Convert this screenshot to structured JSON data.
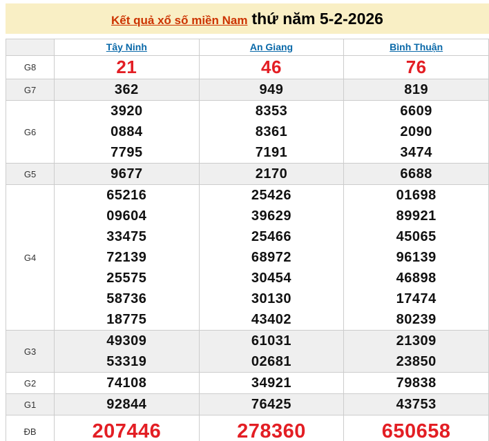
{
  "title": {
    "link_text": "Kết quả xổ số miền Nam",
    "date_text": "thứ năm 5-2-2026"
  },
  "columns": [
    "Tây Ninh",
    "An Giang",
    "Bình Thuận"
  ],
  "colors": {
    "banner_background": "#f9efc5",
    "title_link": "#cc3300",
    "province_link": "#0a69a9",
    "highlight_number": "#e31e24",
    "regular_number": "#111111",
    "shaded_row": "#efefef",
    "border": "#cccccc"
  },
  "rows": [
    {
      "label": "G8",
      "emphasis": "large-red",
      "values": [
        [
          "21"
        ],
        [
          "46"
        ],
        [
          "76"
        ]
      ]
    },
    {
      "label": "G7",
      "emphasis": "",
      "values": [
        [
          "362"
        ],
        [
          "949"
        ],
        [
          "819"
        ]
      ]
    },
    {
      "label": "G6",
      "emphasis": "",
      "values": [
        [
          "3920",
          "0884",
          "7795"
        ],
        [
          "8353",
          "8361",
          "7191"
        ],
        [
          "6609",
          "2090",
          "3474"
        ]
      ]
    },
    {
      "label": "G5",
      "emphasis": "",
      "values": [
        [
          "9677"
        ],
        [
          "2170"
        ],
        [
          "6688"
        ]
      ]
    },
    {
      "label": "G4",
      "emphasis": "",
      "values": [
        [
          "65216",
          "09604",
          "33475",
          "72139",
          "25575",
          "58736",
          "18775"
        ],
        [
          "25426",
          "39629",
          "25466",
          "68972",
          "30454",
          "30130",
          "43402"
        ],
        [
          "01698",
          "89921",
          "45065",
          "96139",
          "46898",
          "17474",
          "80239"
        ]
      ]
    },
    {
      "label": "G3",
      "emphasis": "",
      "values": [
        [
          "49309",
          "53319"
        ],
        [
          "61031",
          "02681"
        ],
        [
          "21309",
          "23850"
        ]
      ]
    },
    {
      "label": "G2",
      "emphasis": "",
      "values": [
        [
          "74108"
        ],
        [
          "34921"
        ],
        [
          "79838"
        ]
      ]
    },
    {
      "label": "G1",
      "emphasis": "",
      "values": [
        [
          "92844"
        ],
        [
          "76425"
        ],
        [
          "43753"
        ]
      ]
    },
    {
      "label": "ĐB",
      "emphasis": "xlarge-red",
      "values": [
        [
          "207446"
        ],
        [
          "278360"
        ],
        [
          "650658"
        ]
      ]
    }
  ]
}
